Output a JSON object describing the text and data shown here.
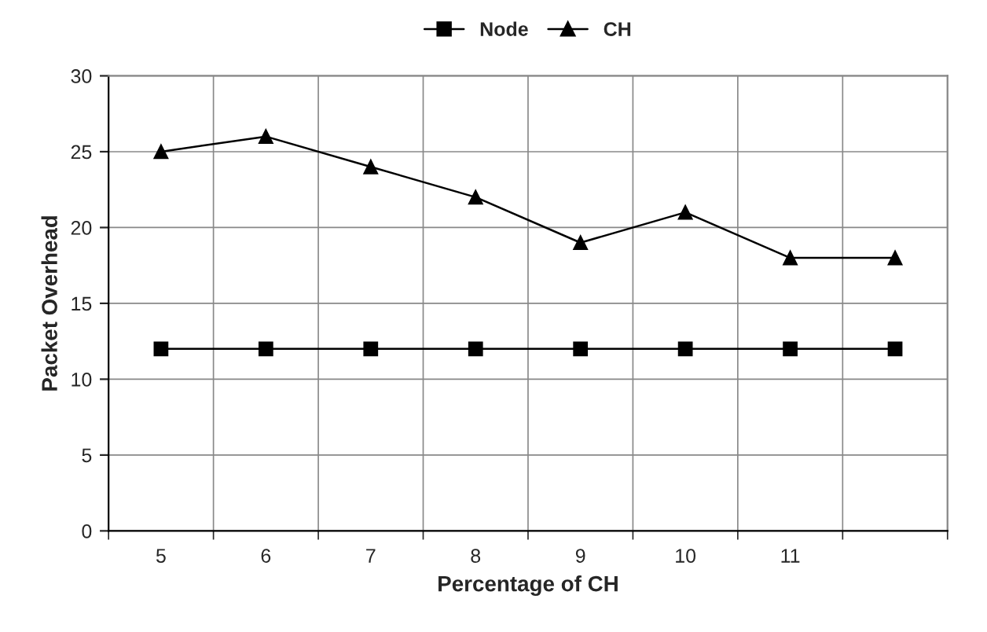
{
  "chart_data": {
    "type": "line",
    "xlabel": "Percentage of CH",
    "ylabel": "Packet Overhead",
    "categories": [
      "5",
      "6",
      "7",
      "8",
      "9",
      "10",
      "11",
      null
    ],
    "series": [
      {
        "name": "Node",
        "color": "#000000",
        "marker": "square",
        "values": [
          12,
          12,
          12,
          12,
          12,
          12,
          12,
          12
        ]
      },
      {
        "name": "CH",
        "color": "#000000",
        "marker": "triangle",
        "values": [
          25,
          26,
          24,
          22,
          19,
          21,
          18,
          18
        ]
      }
    ],
    "ylim": [
      0,
      30
    ],
    "yticks": [
      0,
      5,
      10,
      15,
      20,
      25,
      30
    ],
    "grid": true,
    "legend": "top",
    "line_style": "solid"
  }
}
